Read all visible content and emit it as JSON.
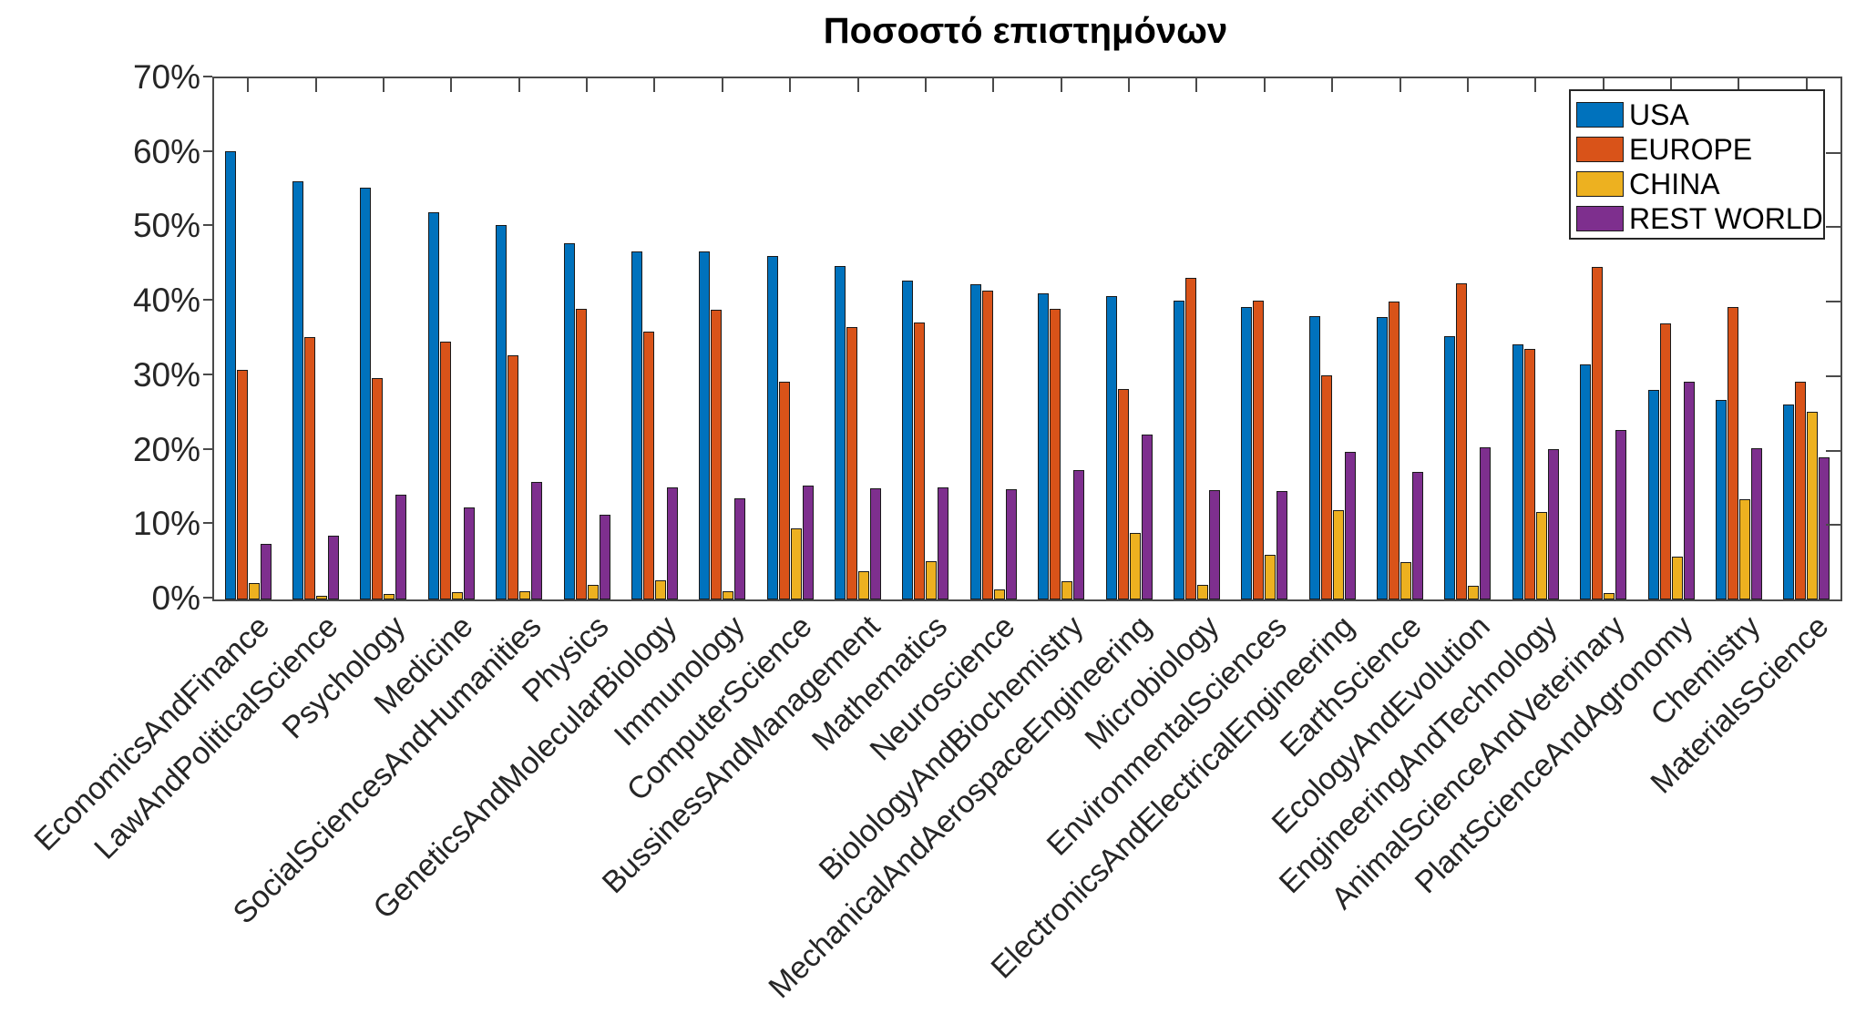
{
  "title": "Ποσοστό επιστημόνων",
  "axes": {
    "ytick_labels": [
      "0%",
      "10%",
      "20%",
      "30%",
      "40%",
      "50%",
      "60%",
      "70%"
    ]
  },
  "legend": {
    "items": [
      "USA",
      "EUROPE",
      "CHINA",
      "REST WORLD"
    ]
  },
  "colors": {
    "usa": "#0072BD",
    "europe": "#D95319",
    "china": "#EDB120",
    "rest_world": "#7E2F8E",
    "axis": "#4a4a4a",
    "text": "#262626"
  },
  "chart_data": {
    "type": "bar",
    "title": "Ποσοστό επιστημόνων",
    "categories": [
      "EconomicsAndFinance",
      "LawAndPoliticalScience",
      "Psychology",
      "Medicine",
      "SocialSciencesAndHumanities",
      "Physics",
      "GeneticsAndMolecularBiology",
      "Immunology",
      "ComputerScience",
      "BussinessAndManagement",
      "Mathematics",
      "Neuroscience",
      "BiolologyAndBiochemistry",
      "MechanicalAndAerospaceEngineering",
      "Microbiology",
      "EnvironmentalSciences",
      "ElectronicsAndElectricalEngineering",
      "EarthScience",
      "EcologyAndEvolution",
      "EngineeringAndTechnology",
      "AnimalScienceAndVeterinary",
      "PlantScienceAndAgronomy",
      "Chemistry",
      "MaterialsScience"
    ],
    "series": [
      {
        "name": "USA",
        "color": "#0072BD",
        "values": [
          60.2,
          56.2,
          55.3,
          52.0,
          50.3,
          47.9,
          46.7,
          46.7,
          46.1,
          44.8,
          42.8,
          42.3,
          41.1,
          40.8,
          40.2,
          39.3,
          38.1,
          37.9,
          35.4,
          34.3,
          31.6,
          28.1,
          26.8,
          26.2
        ]
      },
      {
        "name": "EUROPE",
        "color": "#D95319",
        "values": [
          30.9,
          35.2,
          29.8,
          34.6,
          32.8,
          39.1,
          36.0,
          38.9,
          29.2,
          36.6,
          37.2,
          41.5,
          39.0,
          28.3,
          43.2,
          40.1,
          30.1,
          40.0,
          42.5,
          33.6,
          44.7,
          37.1,
          39.3,
          29.3
        ]
      },
      {
        "name": "CHINA",
        "color": "#EDB120",
        "values": [
          2.2,
          0.5,
          0.8,
          1.0,
          1.1,
          2.0,
          2.6,
          1.1,
          9.6,
          3.8,
          5.2,
          1.4,
          2.5,
          8.9,
          2.0,
          6.0,
          12.0,
          5.0,
          1.8,
          11.8,
          0.9,
          5.7,
          13.5,
          25.2
        ]
      },
      {
        "name": "REST WORLD",
        "color": "#7E2F8E",
        "values": [
          7.5,
          8.6,
          14.1,
          12.4,
          15.8,
          11.4,
          15.1,
          13.6,
          15.3,
          14.9,
          15.1,
          14.8,
          17.4,
          22.2,
          14.7,
          14.6,
          19.8,
          17.1,
          20.5,
          20.2,
          22.8,
          29.2,
          20.3,
          19.1
        ]
      }
    ],
    "ylim": [
      0,
      70
    ],
    "ytick_step": 10,
    "xlabel": "",
    "ylabel": "",
    "grid": false,
    "legend_position": "top-right",
    "bar_orientation": "vertical"
  }
}
